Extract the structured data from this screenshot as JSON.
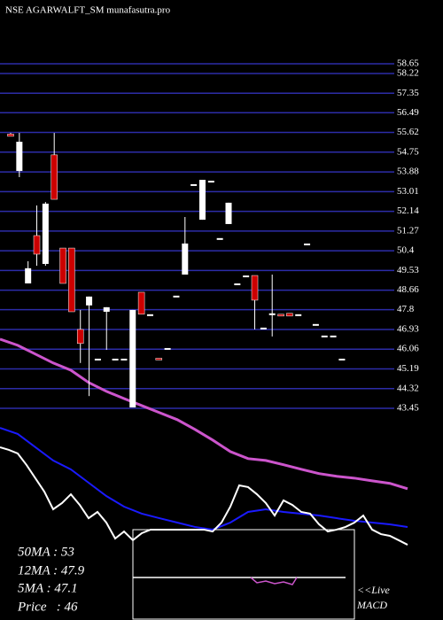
{
  "chart_data": {
    "type": "candlestick",
    "title": "NSE AGARWALFT_SM munafasutra.pro",
    "open": [
      55.55,
      53.92,
      48.96,
      51.07,
      49.82,
      54.63,
      50.52,
      50.52,
      46.93,
      47.99,
      45.6,
      47.71,
      45.6,
      45.6,
      43.49,
      48.57,
      47.56,
      45.62,
      46.07,
      48.38,
      49.35,
      53.3,
      51.77,
      53.45,
      50.92,
      51.58,
      48.92,
      49.27,
      49.31,
      46.97,
      47.6,
      47.6,
      47.64,
      47.56,
      50.68,
      47.13,
      46.62,
      46.62,
      45.6
    ],
    "high": [
      55.6,
      55.6,
      49.94,
      52.4,
      52.55,
      55.6,
      50.52,
      50.52,
      47.79,
      48.38,
      45.6,
      47.91,
      45.6,
      45.6,
      47.79,
      48.57,
      47.56,
      45.62,
      46.07,
      48.38,
      51.89,
      53.3,
      53.53,
      53.45,
      50.92,
      52.52,
      48.92,
      49.27,
      49.31,
      46.97,
      49.35,
      47.6,
      47.64,
      47.56,
      50.68,
      47.13,
      46.62,
      46.62,
      45.6
    ],
    "low": [
      55.45,
      53.65,
      48.96,
      49.74,
      49.74,
      52.67,
      48.96,
      47.71,
      45.45,
      43.99,
      45.6,
      46.03,
      45.6,
      45.6,
      43.49,
      47.6,
      47.56,
      45.58,
      46.07,
      48.38,
      49.35,
      53.3,
      51.77,
      53.45,
      50.92,
      51.58,
      48.92,
      49.27,
      46.93,
      46.97,
      46.62,
      47.52,
      47.52,
      47.56,
      50.68,
      47.13,
      46.62,
      46.62,
      45.6
    ],
    "close": [
      55.45,
      55.21,
      49.63,
      50.25,
      52.48,
      52.67,
      48.96,
      47.71,
      46.31,
      48.38,
      45.6,
      47.91,
      45.6,
      45.6,
      47.79,
      47.6,
      47.56,
      45.58,
      46.07,
      48.38,
      50.72,
      53.3,
      53.53,
      53.45,
      50.92,
      52.52,
      48.92,
      49.27,
      48.22,
      46.97,
      47.6,
      47.52,
      47.52,
      47.56,
      50.68,
      47.13,
      46.62,
      46.62,
      45.6
    ],
    "up_color": "#ffffff",
    "down_color": "#cc0000",
    "ylim": [
      43.45,
      58.65
    ],
    "yticks": [
      58.65,
      58.22,
      57.35,
      56.49,
      55.62,
      54.75,
      53.88,
      53.01,
      52.14,
      51.27,
      50.4,
      49.53,
      48.66,
      47.8,
      46.93,
      46.06,
      45.19,
      44.32,
      43.45
    ],
    "grid": true,
    "grid_color": "#2c2ca8",
    "ma_line": {
      "color": "#cc55cc",
      "values": [
        46.5,
        46.23,
        45.84,
        45.45,
        45.13,
        44.59,
        44.2,
        43.88,
        43.57,
        43.26,
        42.95,
        42.52,
        42.05,
        41.54,
        41.23,
        41.15,
        40.96,
        40.76,
        40.57,
        40.45,
        40.37,
        40.25,
        40.14,
        39.9
      ]
    },
    "indicator": {
      "ylim": [
        0,
        100
      ],
      "series": [
        {
          "color": "#1a1aff",
          "values": [
            91.3,
            86.7,
            76.7,
            66.7,
            60,
            50,
            40,
            32,
            26.7,
            23.3,
            20,
            16.7,
            14.7,
            20,
            28,
            30,
            28,
            26.7,
            25.3,
            23.3,
            21.3,
            20,
            18.7,
            16.7
          ]
        },
        {
          "color": "#ffffff",
          "values": [
            76.7,
            74.7,
            72,
            63.3,
            53.3,
            43.3,
            30,
            34.7,
            41.3,
            33.3,
            23.3,
            28,
            20,
            8,
            13.3,
            6.7,
            12,
            14.7,
            14.7,
            14.7,
            14.7,
            14.7,
            14.7,
            14.7,
            13.3,
            20,
            32,
            48,
            46.7,
            41.3,
            34.7,
            25.3,
            36.7,
            33.3,
            28,
            26.7,
            18.7,
            13.3,
            14.7,
            16.7,
            20,
            25.3,
            14.7,
            11.3,
            10,
            6.7,
            3.3
          ]
        }
      ]
    },
    "labels": [
      "50MA : 53",
      "12MA : 47.9",
      "5MA : 47.1",
      "Price   : 46"
    ],
    "live": "<<Live",
    "macd": "MACD"
  }
}
